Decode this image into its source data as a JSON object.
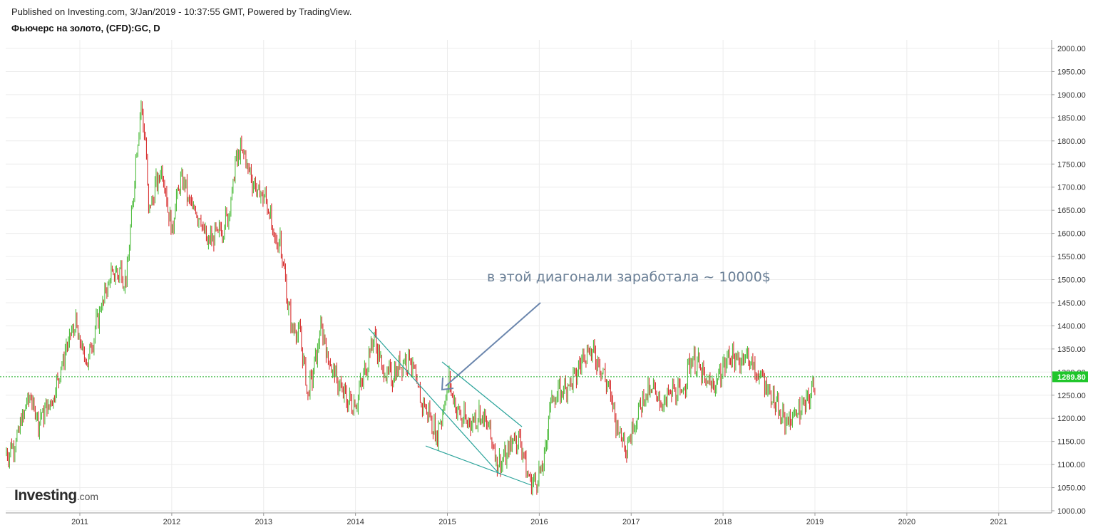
{
  "header": {
    "published": "Published on Investing.com, 3/Jan/2019 - 10:37:55 GMT, Powered by TradingView.",
    "instrument": "Фьючерс на золото, (CFD):GC, D"
  },
  "logo": {
    "brand": "Investing",
    "suffix": ".com"
  },
  "colors": {
    "up": "#3fb62c",
    "down": "#d41e1e",
    "grid": "#ececec",
    "priceLine": "#22b02a",
    "trendline": "#2aa39a",
    "arrow": "#6b86ad",
    "annotation": "#6a7f96"
  },
  "chart_data": {
    "type": "candlestick",
    "title": "Фьючерс на золото, (CFD):GC, D",
    "x_ticks": [
      "2011",
      "2012",
      "2013",
      "2014",
      "2015",
      "2016",
      "2017",
      "2018",
      "2019",
      "2020",
      "2021"
    ],
    "y_ticks": [
      "2000.00",
      "1950.00",
      "1900.00",
      "1850.00",
      "1800.00",
      "1750.00",
      "1700.00",
      "1650.00",
      "1600.00",
      "1550.00",
      "1500.00",
      "1450.00",
      "1400.00",
      "1350.00",
      "1300.00",
      "1250.00",
      "1200.00",
      "1150.00",
      "1100.00",
      "1050.00",
      "1000.00"
    ],
    "ylim": [
      998,
      2008
    ],
    "xlim": [
      2010.2,
      2021.65
    ],
    "current_price": 1289.8,
    "current_price_label": "1289.80",
    "series": [
      {
        "name": "price",
        "points": [
          [
            2010.2,
            1120
          ],
          [
            2010.3,
            1150
          ],
          [
            2010.45,
            1250
          ],
          [
            2010.55,
            1195
          ],
          [
            2010.7,
            1240
          ],
          [
            2010.85,
            1350
          ],
          [
            2010.95,
            1405
          ],
          [
            2011.0,
            1360
          ],
          [
            2011.08,
            1320
          ],
          [
            2011.2,
            1420
          ],
          [
            2011.33,
            1505
          ],
          [
            2011.45,
            1520
          ],
          [
            2011.5,
            1490
          ],
          [
            2011.55,
            1600
          ],
          [
            2011.63,
            1810
          ],
          [
            2011.67,
            1880
          ],
          [
            2011.72,
            1780
          ],
          [
            2011.75,
            1640
          ],
          [
            2011.82,
            1700
          ],
          [
            2011.9,
            1740
          ],
          [
            2012.0,
            1600
          ],
          [
            2012.05,
            1680
          ],
          [
            2012.12,
            1720
          ],
          [
            2012.2,
            1660
          ],
          [
            2012.3,
            1640
          ],
          [
            2012.38,
            1580
          ],
          [
            2012.45,
            1590
          ],
          [
            2012.55,
            1610
          ],
          [
            2012.63,
            1650
          ],
          [
            2012.7,
            1760
          ],
          [
            2012.77,
            1780
          ],
          [
            2012.85,
            1730
          ],
          [
            2012.93,
            1690
          ],
          [
            2013.0,
            1680
          ],
          [
            2013.05,
            1660
          ],
          [
            2013.12,
            1575
          ],
          [
            2013.18,
            1590
          ],
          [
            2013.25,
            1470
          ],
          [
            2013.3,
            1400
          ],
          [
            2013.4,
            1380
          ],
          [
            2013.48,
            1250
          ],
          [
            2013.55,
            1310
          ],
          [
            2013.63,
            1400
          ],
          [
            2013.7,
            1330
          ],
          [
            2013.8,
            1280
          ],
          [
            2013.9,
            1240
          ],
          [
            2014.0,
            1230
          ],
          [
            2014.1,
            1300
          ],
          [
            2014.2,
            1380
          ],
          [
            2014.3,
            1300
          ],
          [
            2014.4,
            1290
          ],
          [
            2014.5,
            1320
          ],
          [
            2014.6,
            1330
          ],
          [
            2014.7,
            1240
          ],
          [
            2014.8,
            1210
          ],
          [
            2014.88,
            1160
          ],
          [
            2014.93,
            1200
          ],
          [
            2015.02,
            1280
          ],
          [
            2015.08,
            1230
          ],
          [
            2015.15,
            1200
          ],
          [
            2015.25,
            1190
          ],
          [
            2015.35,
            1210
          ],
          [
            2015.45,
            1180
          ],
          [
            2015.55,
            1100
          ],
          [
            2015.65,
            1120
          ],
          [
            2015.72,
            1160
          ],
          [
            2015.8,
            1150
          ],
          [
            2015.88,
            1070
          ],
          [
            2015.95,
            1060
          ],
          [
            2016.05,
            1100
          ],
          [
            2016.12,
            1240
          ],
          [
            2016.2,
            1250
          ],
          [
            2016.3,
            1270
          ],
          [
            2016.4,
            1290
          ],
          [
            2016.48,
            1340
          ],
          [
            2016.55,
            1350
          ],
          [
            2016.65,
            1320
          ],
          [
            2016.75,
            1270
          ],
          [
            2016.85,
            1180
          ],
          [
            2016.95,
            1140
          ],
          [
            2017.05,
            1200
          ],
          [
            2017.15,
            1250
          ],
          [
            2017.25,
            1260
          ],
          [
            2017.35,
            1230
          ],
          [
            2017.45,
            1260
          ],
          [
            2017.55,
            1250
          ],
          [
            2017.65,
            1330
          ],
          [
            2017.72,
            1320
          ],
          [
            2017.8,
            1280
          ],
          [
            2017.9,
            1270
          ],
          [
            2018.0,
            1310
          ],
          [
            2018.08,
            1340
          ],
          [
            2018.15,
            1320
          ],
          [
            2018.25,
            1340
          ],
          [
            2018.35,
            1300
          ],
          [
            2018.45,
            1280
          ],
          [
            2018.55,
            1240
          ],
          [
            2018.63,
            1200
          ],
          [
            2018.72,
            1195
          ],
          [
            2018.8,
            1215
          ],
          [
            2018.88,
            1225
          ],
          [
            2018.95,
            1250
          ],
          [
            2019.01,
            1290
          ]
        ]
      }
    ],
    "annotation": "в этой диагонали заработала ~ 10000$"
  }
}
